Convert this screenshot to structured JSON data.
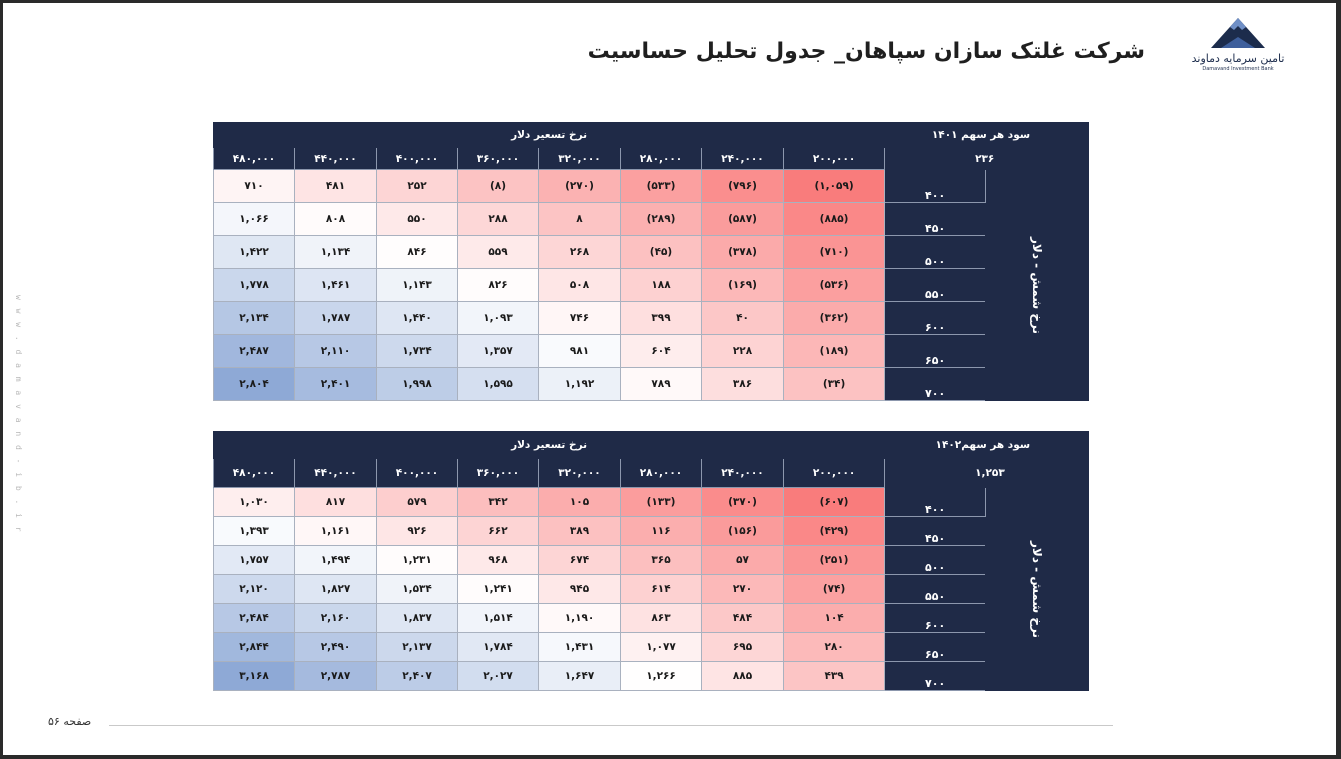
{
  "title": "شرکت غلتک سازان سپاهان_ جدول تحلیل حساسیت",
  "logo": {
    "name_fa": "تامین سرمایه دماوند",
    "name_en": "Damavand Investment Bank"
  },
  "side_url": "w w w . d a m a v a n d - i b . i r",
  "footer": {
    "page_label": "صفحه ۵۶"
  },
  "colors": {
    "header_bg": "#1f2a47",
    "neg_strong": "#f97c7c",
    "neutral": "#ffffff",
    "pos_strong": "#8ea9d6"
  },
  "tables": [
    {
      "eps_label": "سود هر سهم ۱۴۰۱",
      "col_axis": "نرخ تسعیر دلار",
      "base": "۲۳۶",
      "row_axis": "نرخ شمش - دلار",
      "cols": [
        "۴۸۰,۰۰۰",
        "۴۴۰,۰۰۰",
        "۴۰۰,۰۰۰",
        "۳۶۰,۰۰۰",
        "۳۲۰,۰۰۰",
        "۲۸۰,۰۰۰",
        "۲۴۰,۰۰۰",
        "۲۰۰,۰۰۰"
      ],
      "rows": [
        {
          "label": "۴۰۰",
          "cells": [
            "۷۱۰",
            "۴۸۱",
            "۲۵۲",
            "(۸)",
            "(۲۷۰)",
            "(۵۳۳)",
            "(۷۹۶)",
            "(۱,۰۵۹)"
          ],
          "values": [
            710,
            481,
            252,
            -8,
            -270,
            -533,
            -796,
            -1059
          ]
        },
        {
          "label": "۴۵۰",
          "cells": [
            "۱,۰۶۶",
            "۸۰۸",
            "۵۵۰",
            "۲۸۸",
            "۸",
            "(۲۸۹)",
            "(۵۸۷)",
            "(۸۸۵)"
          ],
          "values": [
            1066,
            808,
            550,
            288,
            8,
            -289,
            -587,
            -885
          ]
        },
        {
          "label": "۵۰۰",
          "cells": [
            "۱,۴۲۲",
            "۱,۱۳۴",
            "۸۴۶",
            "۵۵۹",
            "۲۶۸",
            "(۴۵)",
            "(۳۷۸)",
            "(۷۱۰)"
          ],
          "values": [
            1422,
            1134,
            846,
            559,
            268,
            -45,
            -378,
            -710
          ]
        },
        {
          "label": "۵۵۰",
          "cells": [
            "۱,۷۷۸",
            "۱,۴۶۱",
            "۱,۱۴۳",
            "۸۲۶",
            "۵۰۸",
            "۱۸۸",
            "(۱۶۹)",
            "(۵۳۶)"
          ],
          "values": [
            1778,
            1461,
            1143,
            826,
            508,
            188,
            -169,
            -536
          ]
        },
        {
          "label": "۶۰۰",
          "cells": [
            "۲,۱۳۴",
            "۱,۷۸۷",
            "۱,۴۴۰",
            "۱,۰۹۳",
            "۷۴۶",
            "۳۹۹",
            "۴۰",
            "(۳۶۲)"
          ],
          "values": [
            2134,
            1787,
            1440,
            1093,
            746,
            399,
            40,
            -362
          ]
        },
        {
          "label": "۶۵۰",
          "cells": [
            "۲,۴۸۷",
            "۲,۱۱۰",
            "۱,۷۳۴",
            "۱,۳۵۷",
            "۹۸۱",
            "۶۰۴",
            "۲۲۸",
            "(۱۸۹)"
          ],
          "values": [
            2487,
            2110,
            1734,
            1357,
            981,
            604,
            228,
            -189
          ]
        },
        {
          "label": "۷۰۰",
          "cells": [
            "۲,۸۰۴",
            "۲,۴۰۱",
            "۱,۹۹۸",
            "۱,۵۹۵",
            "۱,۱۹۲",
            "۷۸۹",
            "۳۸۶",
            "(۳۴)"
          ],
          "values": [
            2804,
            2401,
            1998,
            1595,
            1192,
            789,
            386,
            -34
          ]
        }
      ]
    },
    {
      "eps_label": "۱۴۰۲سود هر سهم",
      "col_axis": "نرخ تسعیر دلار",
      "base": "۱,۲۵۳",
      "row_axis": "نرخ شمش - دلار",
      "cols": [
        "۴۸۰,۰۰۰",
        "۴۴۰,۰۰۰",
        "۴۰۰,۰۰۰",
        "۳۶۰,۰۰۰",
        "۳۲۰,۰۰۰",
        "۲۸۰,۰۰۰",
        "۲۴۰,۰۰۰",
        "۲۰۰,۰۰۰"
      ],
      "rows": [
        {
          "label": "۴۰۰",
          "cells": [
            "۱,۰۳۰",
            "۸۱۷",
            "۵۷۹",
            "۳۴۲",
            "۱۰۵",
            "(۱۳۳)",
            "(۳۷۰)",
            "(۶۰۷)"
          ],
          "values": [
            1030,
            817,
            579,
            342,
            105,
            -133,
            -370,
            -607
          ]
        },
        {
          "label": "۴۵۰",
          "cells": [
            "۱,۳۹۳",
            "۱,۱۶۱",
            "۹۲۶",
            "۶۶۲",
            "۳۸۹",
            "۱۱۶",
            "(۱۵۶)",
            "(۴۲۹)"
          ],
          "values": [
            1393,
            1161,
            926,
            662,
            389,
            116,
            -156,
            -429
          ]
        },
        {
          "label": "۵۰۰",
          "cells": [
            "۱,۷۵۷",
            "۱,۴۹۴",
            "۱,۲۳۱",
            "۹۶۸",
            "۶۷۴",
            "۳۶۵",
            "۵۷",
            "(۲۵۱)"
          ],
          "values": [
            1757,
            1494,
            1231,
            968,
            674,
            365,
            57,
            -251
          ]
        },
        {
          "label": "۵۵۰",
          "cells": [
            "۲,۱۲۰",
            "۱,۸۲۷",
            "۱,۵۳۴",
            "۱,۲۴۱",
            "۹۴۵",
            "۶۱۴",
            "۲۷۰",
            "(۷۴)"
          ],
          "values": [
            2120,
            1827,
            1534,
            1241,
            945,
            614,
            270,
            -74
          ]
        },
        {
          "label": "۶۰۰",
          "cells": [
            "۲,۴۸۴",
            "۲,۱۶۰",
            "۱,۸۳۷",
            "۱,۵۱۴",
            "۱,۱۹۰",
            "۸۶۳",
            "۴۸۴",
            "۱۰۴"
          ],
          "values": [
            2484,
            2160,
            1837,
            1514,
            1190,
            863,
            484,
            104
          ]
        },
        {
          "label": "۶۵۰",
          "cells": [
            "۲,۸۴۴",
            "۲,۴۹۰",
            "۲,۱۳۷",
            "۱,۷۸۴",
            "۱,۴۳۱",
            "۱,۰۷۷",
            "۶۹۵",
            "۲۸۰"
          ],
          "values": [
            2844,
            2490,
            2137,
            1784,
            1431,
            1077,
            695,
            280
          ]
        },
        {
          "label": "۷۰۰",
          "cells": [
            "۳,۱۶۸",
            "۲,۷۸۷",
            "۲,۴۰۷",
            "۲,۰۲۷",
            "۱,۶۴۷",
            "۱,۲۶۶",
            "۸۸۵",
            "۴۳۹"
          ],
          "values": [
            3168,
            2787,
            2407,
            2027,
            1647,
            1266,
            885,
            439
          ]
        }
      ]
    }
  ]
}
